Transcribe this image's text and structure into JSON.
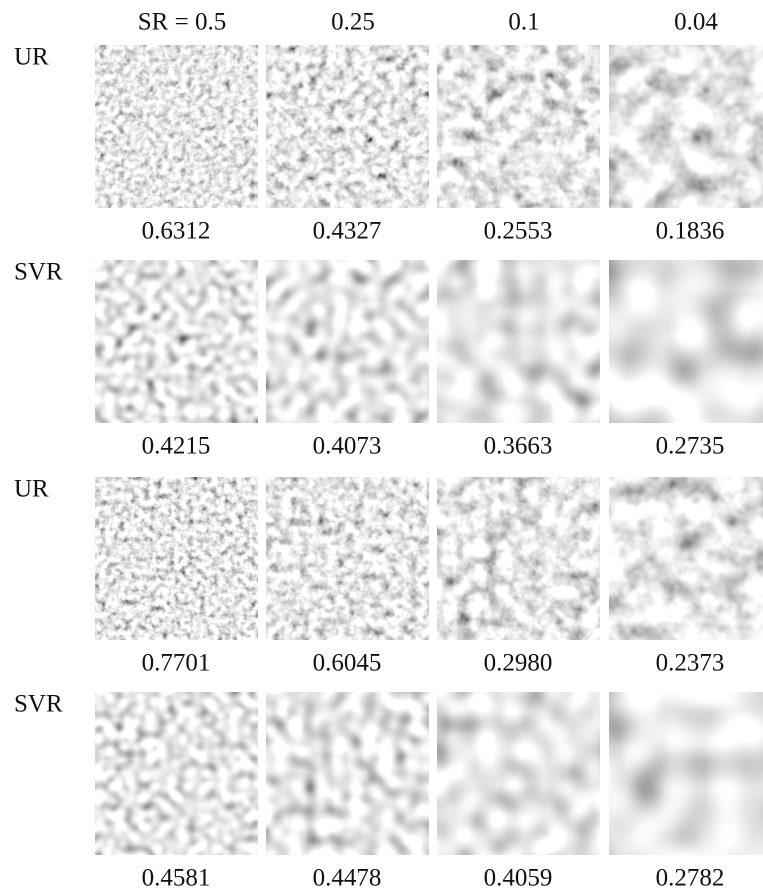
{
  "columns": [
    "SR = 0.5",
    "0.25",
    "0.1",
    "0.04"
  ],
  "rows": [
    {
      "label": "UR",
      "values": [
        "0.6312",
        "0.4327",
        "0.2553",
        "0.1836"
      ]
    },
    {
      "label": "SVR",
      "values": [
        "0.4215",
        "0.4073",
        "0.3663",
        "0.2735"
      ]
    },
    {
      "label": "UR",
      "values": [
        "0.7701",
        "0.6045",
        "0.2980",
        "0.2373"
      ]
    },
    {
      "label": "SVR",
      "values": [
        "0.4581",
        "0.4478",
        "0.4059",
        "0.2782"
      ]
    }
  ]
}
